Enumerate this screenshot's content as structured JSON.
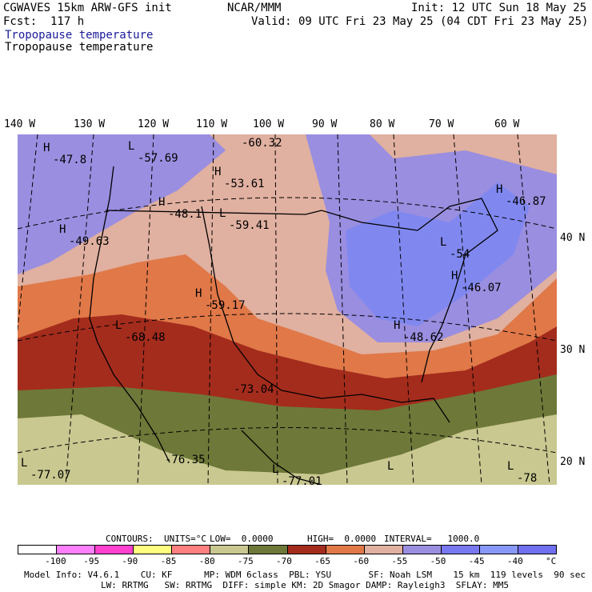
{
  "header": {
    "model": "CGWAVES 15km ARW-GFS init",
    "forecast": "Fcst:  117 h",
    "org": "NCAR/MMM",
    "init": "Init: 12 UTC Sun 18 May 25",
    "valid": "Valid: 09 UTC Fri 23 May 25 (04 CDT Fri 23 May 25)",
    "field_title_1": "Tropopause temperature",
    "field_title_2": "Tropopause temperature",
    "title_color": "#1a1a9a"
  },
  "longitudes": [
    "140 W",
    "130 W",
    "120 W",
    "110 W",
    "100 W",
    "90 W",
    "80 W",
    "70 W",
    "60 W"
  ],
  "latitudes": [
    "40 N",
    "30 N",
    "20 N"
  ],
  "markers": [
    {
      "kind": "H",
      "value": "-47.8"
    },
    {
      "kind": "L",
      "value": "-57.69"
    },
    {
      "kind": "",
      "value": "-60.32"
    },
    {
      "kind": "H",
      "value": "-53.61"
    },
    {
      "kind": "H",
      "value": "-48.1"
    },
    {
      "kind": "L",
      "value": "-59.41"
    },
    {
      "kind": "H",
      "value": "-49.63"
    },
    {
      "kind": "H",
      "value": "-46.87"
    },
    {
      "kind": "L",
      "value": "-54"
    },
    {
      "kind": "H",
      "value": "-46.07"
    },
    {
      "kind": "H",
      "value": "-59.17"
    },
    {
      "kind": "L",
      "value": "-68.48"
    },
    {
      "kind": "H",
      "value": "-48.62"
    },
    {
      "kind": "",
      "value": "-73.04"
    },
    {
      "kind": "L",
      "value": "-77.07"
    },
    {
      "kind": "",
      "value": "-76.35"
    },
    {
      "kind": "L",
      "value": "-77.01"
    },
    {
      "kind": "L",
      "value": ""
    },
    {
      "kind": "L",
      "value": "-78"
    }
  ],
  "contours": {
    "label": "CONTOURS:",
    "units": "UNITS=°C",
    "low": "LOW=  0.0000",
    "high": "HIGH=  0.0000",
    "interval": "INTERVAL=   1000.0"
  },
  "legend": {
    "colors": [
      "#ffffff",
      "#ff80ff",
      "#ff40d0",
      "#ffff80",
      "#ff8080",
      "#c8c890",
      "#6e7838",
      "#a42c1c",
      "#e07848",
      "#e0b0a0",
      "#9a8ee0",
      "#7878f0",
      "#8898f8",
      "#7070f0"
    ],
    "labels": [
      "-100",
      "-95",
      "-90",
      "-85",
      "-80",
      "-75",
      "-70",
      "-65",
      "-60",
      "-55",
      "-50",
      "-45",
      "-40",
      "°C"
    ]
  },
  "footer": {
    "line1": "Model Info: V4.6.1    CU: KF      MP: WDM 6class  PBL: YSU       SF: Noah LSM    15 km  119 levels  90 sec",
    "line2": "LW: RRTMG   SW: RRTMG  DIFF: simple KM: 2D Smagor DAMP: Rayleigh3  SFLAY: MM5"
  }
}
